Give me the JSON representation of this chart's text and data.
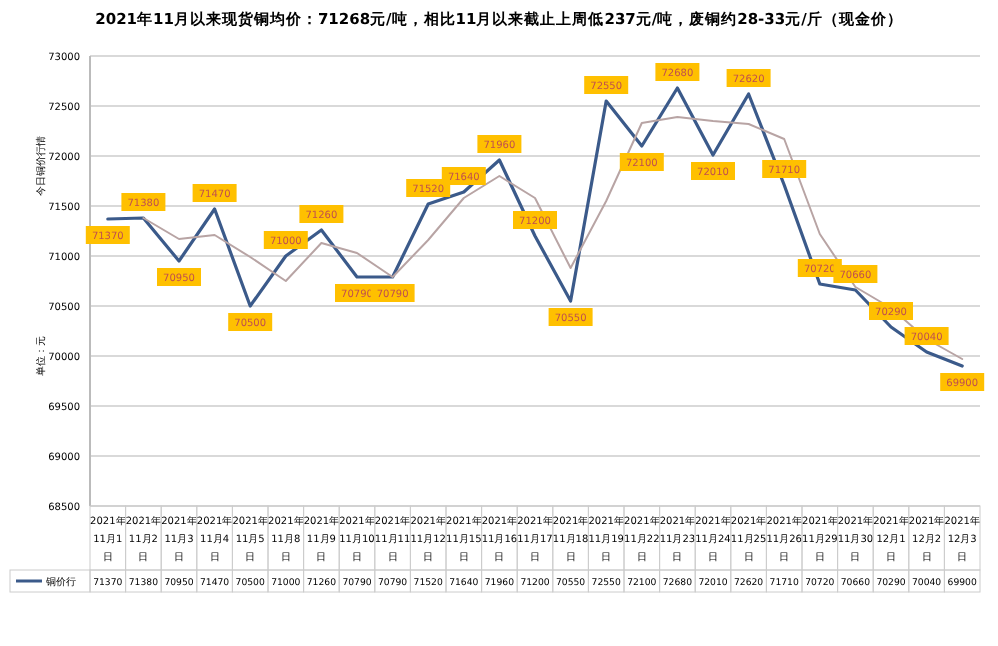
{
  "chart_data": {
    "type": "line",
    "title": "2021年11月以来现货铜均价：71268元/吨，相比11月以来截止上周低237元/吨，废铜约28-33元/斤（现金价）",
    "ylabel": "今日铜价行情",
    "annotations": [
      "单位：元"
    ],
    "categories": [
      "2021年11月1日",
      "2021年11月2日",
      "2021年11月3日",
      "2021年11月4日",
      "2021年11月5日",
      "2021年11月8日",
      "2021年11月9日",
      "2021年11月10日",
      "2021年11月11日",
      "2021年11月12日",
      "2021年11月15日",
      "2021年11月16日",
      "2021年11月17日",
      "2021年11月18日",
      "2021年11月19日",
      "2021年11月22日",
      "2021年11月23日",
      "2021年11月24日",
      "2021年11月25日",
      "2021年11月26日",
      "2021年11月29日",
      "2021年11月30日",
      "2021年12月1日",
      "2021年12月2日",
      "2021年12月3日"
    ],
    "series": [
      {
        "name": "铜价行",
        "color": "#3b5a8a",
        "values": [
          71370,
          71380,
          70950,
          71470,
          70500,
          71000,
          71260,
          70790,
          70790,
          71520,
          71640,
          71960,
          71200,
          70550,
          72550,
          72100,
          72680,
          72010,
          72620,
          71710,
          70720,
          70660,
          70290,
          70040,
          69900
        ],
        "value_labels": [
          "71370",
          "71380",
          "70950",
          "71470",
          "70500",
          "71000",
          "71260",
          "70790",
          "70790",
          "71520",
          "71640",
          "71960",
          "71200",
          "70550",
          "72550",
          "72100",
          "72680",
          "72010",
          "72620",
          "71710",
          "70720",
          "70660",
          "70290",
          "70040",
          "69900"
        ]
      },
      {
        "color": "#b8a4a4",
        "values": [
          null,
          71380,
          71170,
          71210,
          70990,
          70750,
          71130,
          71030,
          70790,
          71160,
          71580,
          71800,
          71580,
          70880,
          71550,
          72330,
          72390,
          72350,
          72320,
          72170,
          71220,
          70690,
          70480,
          70170,
          69970
        ]
      }
    ],
    "ylim": [
      68500,
      73000
    ],
    "yticks": [
      68500,
      69000,
      69500,
      70000,
      70500,
      71000,
      71500,
      72000,
      72500,
      73000
    ],
    "grid": "y",
    "marker": "none",
    "line_style": "solid"
  }
}
